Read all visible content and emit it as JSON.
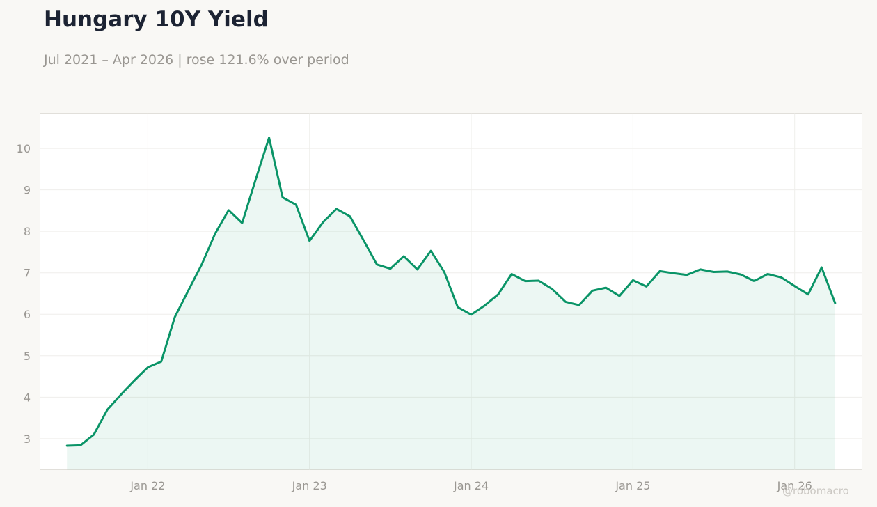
{
  "title": "Hungary 10Y Yield",
  "subtitle": "Jul 2021 – Apr 2026 | rose 121.6% over period",
  "watermark": "@robomacro",
  "colors": {
    "line": "#0a9467",
    "fill": "#0a9467",
    "background": "#f9f8f5",
    "plot_background": "#ffffff",
    "title": "#1c2333",
    "subtitle": "#999691",
    "axis_text": "#9a9792"
  },
  "chart_data": {
    "type": "area",
    "title": "Hungary 10Y Yield",
    "subtitle": "Jul 2021 – Apr 2026 | rose 121.6% over period",
    "xlabel": "",
    "ylabel": "",
    "x_ticks": [
      "Jan 22",
      "Jan 23",
      "Jan 24",
      "Jan 25",
      "Jan 26"
    ],
    "x_tick_dates": [
      "2022-01",
      "2023-01",
      "2024-01",
      "2025-01",
      "2026-01"
    ],
    "y_ticks": [
      3,
      4,
      5,
      6,
      7,
      8,
      9,
      10
    ],
    "ylim": [
      2.25,
      10.85
    ],
    "xlim": [
      "2021-05",
      "2026-06"
    ],
    "grid": true,
    "legend": "none",
    "series": [
      {
        "x": [
          "2021-07",
          "2021-08",
          "2021-09",
          "2021-10",
          "2021-11",
          "2021-12",
          "2022-01",
          "2022-02",
          "2022-03",
          "2022-04",
          "2022-05",
          "2022-06",
          "2022-07",
          "2022-08",
          "2022-09",
          "2022-10",
          "2022-11",
          "2022-12",
          "2023-01",
          "2023-02",
          "2023-03",
          "2023-04",
          "2023-05",
          "2023-06",
          "2023-07",
          "2023-08",
          "2023-09",
          "2023-10",
          "2023-11",
          "2023-12",
          "2024-01",
          "2024-02",
          "2024-03",
          "2024-04",
          "2024-05",
          "2024-06",
          "2024-07",
          "2024-08",
          "2024-09",
          "2024-10",
          "2024-11",
          "2024-12",
          "2025-01",
          "2025-02",
          "2025-03",
          "2025-04",
          "2025-05",
          "2025-06",
          "2025-07",
          "2025-08",
          "2025-09",
          "2025-10",
          "2025-11",
          "2025-12",
          "2026-01",
          "2026-02",
          "2026-03",
          "2026-04"
        ],
        "values": [
          2.83,
          2.84,
          3.1,
          3.7,
          4.06,
          4.4,
          4.72,
          4.86,
          5.93,
          6.57,
          7.2,
          7.95,
          8.51,
          8.2,
          9.25,
          10.26,
          8.82,
          8.64,
          7.77,
          8.22,
          8.54,
          8.36,
          7.79,
          7.2,
          7.1,
          7.4,
          7.08,
          7.53,
          7.02,
          6.17,
          5.99,
          6.21,
          6.48,
          6.97,
          6.8,
          6.81,
          6.61,
          6.3,
          6.22,
          6.57,
          6.64,
          6.44,
          6.82,
          6.67,
          7.04,
          6.99,
          6.95,
          7.08,
          7.02,
          7.03,
          6.96,
          6.8,
          6.97,
          6.89,
          6.68,
          6.48,
          7.13,
          6.27
        ]
      }
    ]
  }
}
